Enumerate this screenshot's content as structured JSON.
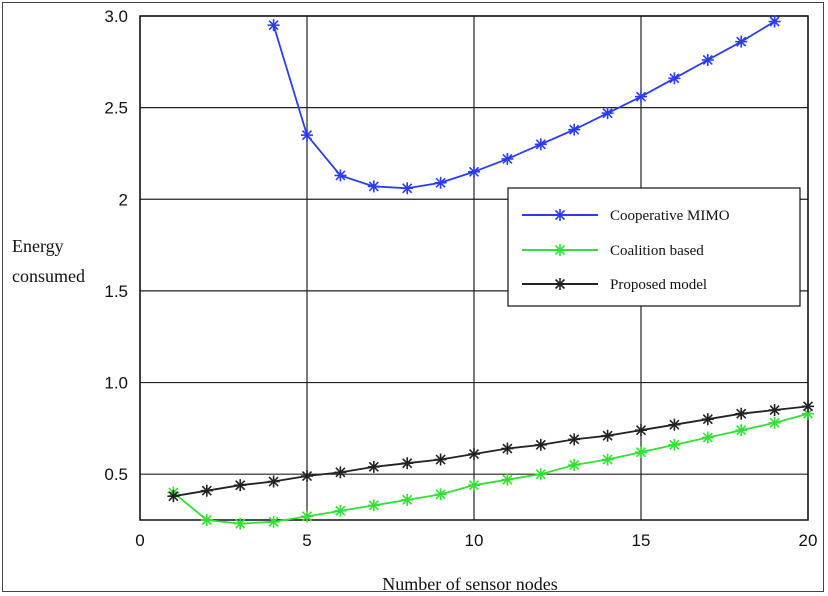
{
  "chart_data": {
    "type": "line",
    "title": "",
    "xlabel": "Number of sensor nodes",
    "ylabel_lines": [
      "Energy",
      "consumed"
    ],
    "xlim": [
      0,
      20
    ],
    "ylim": [
      0.25,
      3.0
    ],
    "grid": true,
    "legend_position": "center-right",
    "x_ticks": [
      0,
      5,
      10,
      15,
      20
    ],
    "x_tick_labels": [
      "0",
      "5",
      "10",
      "15",
      "20"
    ],
    "y_ticks": [
      0.5,
      1.0,
      1.5,
      2.0,
      2.5,
      3.0
    ],
    "y_tick_labels": [
      "0.5",
      "1.0",
      "1.5",
      "2",
      "2.5",
      "3.0"
    ],
    "series": [
      {
        "name": "Cooperative MIMO",
        "color": "#2a3cf0",
        "x": [
          4,
          5,
          6,
          7,
          8,
          9,
          10,
          11,
          12,
          13,
          14,
          15,
          16,
          17,
          18,
          19
        ],
        "y": [
          2.95,
          2.35,
          2.13,
          2.07,
          2.06,
          2.09,
          2.15,
          2.22,
          2.3,
          2.38,
          2.47,
          2.56,
          2.66,
          2.76,
          2.86,
          2.97
        ]
      },
      {
        "name": "Coalition based",
        "color": "#33e033",
        "x": [
          1,
          2,
          3,
          4,
          5,
          6,
          7,
          8,
          9,
          10,
          11,
          12,
          13,
          14,
          15,
          16,
          17,
          18,
          19,
          20
        ],
        "y": [
          0.4,
          0.25,
          0.23,
          0.24,
          0.27,
          0.3,
          0.33,
          0.36,
          0.39,
          0.44,
          0.47,
          0.5,
          0.55,
          0.58,
          0.62,
          0.66,
          0.7,
          0.74,
          0.78,
          0.83
        ]
      },
      {
        "name": "Proposed model",
        "color": "#222222",
        "x": [
          1,
          2,
          3,
          4,
          5,
          6,
          7,
          8,
          9,
          10,
          11,
          12,
          13,
          14,
          15,
          16,
          17,
          18,
          19,
          20
        ],
        "y": [
          0.38,
          0.41,
          0.44,
          0.46,
          0.49,
          0.51,
          0.54,
          0.56,
          0.58,
          0.61,
          0.64,
          0.66,
          0.69,
          0.71,
          0.74,
          0.77,
          0.8,
          0.83,
          0.85,
          0.87
        ]
      }
    ]
  }
}
